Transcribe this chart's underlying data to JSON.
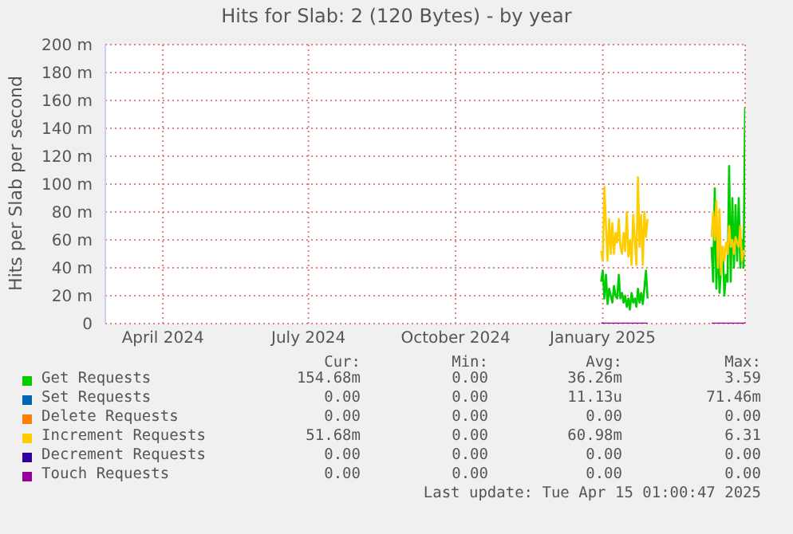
{
  "chart_data": {
    "type": "line",
    "title": "Hits for Slab: 2 (120 Bytes) - by year",
    "ylabel": "Hits per Slab per second",
    "x": [
      "2025-01-15",
      "2025-01-16",
      "2025-01-17",
      "2025-01-18",
      "2025-01-19",
      "2025-01-20",
      "2025-01-21",
      "2025-01-22",
      "2025-01-23",
      "2025-01-24",
      "2025-01-25",
      "2025-01-26",
      "2025-01-27",
      "2025-01-28",
      "2025-01-29",
      "2025-01-30",
      "2025-01-31",
      "2025-02-01",
      "2025-02-02",
      "2025-02-03",
      "2025-02-04",
      "2025-02-05",
      "2025-02-06",
      "2025-02-07",
      "2025-02-08",
      "2025-02-09",
      "2025-02-10",
      "2025-02-11",
      "2025-02-12",
      "2025-02-13",
      "2025-02-14",
      "2025-03-25",
      "2025-03-26",
      "2025-03-27",
      "2025-03-28",
      "2025-03-29",
      "2025-03-30",
      "2025-03-31",
      "2025-04-01",
      "2025-04-02",
      "2025-04-03",
      "2025-04-04",
      "2025-04-05",
      "2025-04-06",
      "2025-04-07",
      "2025-04-08",
      "2025-04-09",
      "2025-04-10",
      "2025-04-11",
      "2025-04-12",
      "2025-04-13",
      "2025-04-14",
      "2025-04-15"
    ],
    "series": [
      {
        "name": "Get Requests",
        "color": "#00cc00",
        "values": [
          30,
          38,
          18,
          35,
          14,
          25,
          20,
          15,
          27,
          20,
          18,
          35,
          18,
          22,
          15,
          20,
          12,
          18,
          10,
          22,
          15,
          18,
          12,
          25,
          15,
          22,
          14,
          25,
          38,
          18,
          null,
          55,
          30,
          97,
          25,
          60,
          22,
          40,
          55,
          20,
          35,
          30,
          113,
          30,
          90,
          40,
          85,
          45,
          90,
          40,
          60,
          40,
          155
        ]
      },
      {
        "name": "Set Requests",
        "color": "#0066b3",
        "values": [
          null,
          null,
          null,
          null,
          null,
          null,
          null,
          null,
          null,
          null,
          null,
          null,
          null,
          null,
          null,
          null,
          null,
          null,
          null,
          null,
          null,
          null,
          null,
          null,
          null,
          null,
          null,
          null,
          null,
          null,
          null,
          null,
          null,
          null,
          null,
          null,
          null,
          null,
          null,
          null,
          null,
          null,
          null,
          null,
          null,
          null,
          null,
          null,
          null,
          null,
          null,
          null,
          null
        ]
      },
      {
        "name": "Delete Requests",
        "color": "#ff8000",
        "values": [
          null,
          null,
          null,
          null,
          null,
          null,
          null,
          null,
          null,
          null,
          null,
          null,
          null,
          null,
          null,
          null,
          null,
          null,
          null,
          null,
          null,
          null,
          null,
          null,
          null,
          null,
          null,
          null,
          null,
          null,
          null,
          null,
          null,
          null,
          null,
          null,
          null,
          null,
          null,
          null,
          null,
          null,
          null,
          null,
          null,
          null,
          null,
          null,
          null,
          null,
          null,
          null,
          null
        ]
      },
      {
        "name": "Increment Requests",
        "color": "#ffcc00",
        "values": [
          52,
          45,
          98,
          70,
          45,
          75,
          50,
          72,
          50,
          65,
          58,
          75,
          55,
          50,
          65,
          52,
          80,
          48,
          60,
          42,
          78,
          60,
          42,
          105,
          55,
          78,
          42,
          80,
          62,
          75,
          null,
          62,
          80,
          60,
          88,
          40,
          82,
          35,
          55,
          45,
          58,
          50,
          70,
          55,
          60,
          50,
          62,
          58,
          55,
          70,
          45,
          52,
          52
        ]
      },
      {
        "name": "Decrement Requests",
        "color": "#330099",
        "values": [
          null,
          null,
          null,
          null,
          null,
          null,
          null,
          null,
          null,
          null,
          null,
          null,
          null,
          null,
          null,
          null,
          null,
          null,
          null,
          null,
          null,
          null,
          null,
          null,
          null,
          null,
          null,
          null,
          null,
          null,
          null,
          null,
          null,
          null,
          null,
          null,
          null,
          null,
          null,
          null,
          null,
          null,
          null,
          null,
          null,
          null,
          null,
          null,
          null,
          null,
          null,
          null,
          null
        ]
      },
      {
        "name": "Touch Requests",
        "color": "#990099",
        "values": [
          0,
          0,
          0,
          0,
          0,
          0,
          0,
          0,
          0,
          0,
          0,
          0,
          0,
          0,
          0,
          0,
          0,
          0,
          0,
          0,
          0,
          0,
          0,
          0,
          0,
          0,
          0,
          0,
          0,
          0,
          null,
          0,
          0,
          0,
          0,
          0,
          0,
          0,
          0,
          0,
          0,
          0,
          0,
          0,
          0,
          0,
          0,
          0,
          0,
          0,
          0,
          0,
          0
        ]
      }
    ],
    "xlim": [
      "2024-03-11",
      "2025-04-15"
    ],
    "xticks": [
      {
        "value": "2024-04-16",
        "label": "April 2024"
      },
      {
        "value": "2024-07-16",
        "label": "July 2024"
      },
      {
        "value": "2024-10-16",
        "label": "October 2024"
      },
      {
        "value": "2025-01-16",
        "label": "January 2025"
      }
    ],
    "ylim": [
      0,
      200
    ],
    "yticks": [
      0,
      {
        "value": 20,
        "label": "20 m"
      },
      {
        "value": 40,
        "label": "40 m"
      },
      {
        "value": 60,
        "label": "60 m"
      },
      {
        "value": 80,
        "label": "80 m"
      },
      {
        "value": 100,
        "label": "100 m"
      },
      {
        "value": 120,
        "label": "120 m"
      },
      {
        "value": 140,
        "label": "140 m"
      },
      {
        "value": 160,
        "label": "160 m"
      },
      {
        "value": 180,
        "label": "180 m"
      },
      {
        "value": 200,
        "label": "200 m"
      }
    ],
    "grid": true,
    "legend": "bottom",
    "marker": "none",
    "line_style": "solid",
    "annotations": [
      "Cur:",
      "Min:",
      "Avg:",
      "Max:",
      "154.68m",
      "0.00",
      "36.26m",
      "3.59",
      "0.00",
      "0.00",
      "11.13u",
      "71.46m",
      "0.00",
      "0.00",
      "0.00",
      "0.00",
      "51.68m",
      "0.00",
      "60.98m",
      "6.31",
      "0.00",
      "0.00",
      "0.00",
      "0.00",
      "0.00",
      "0.00",
      "0.00",
      "0.00",
      "Last update: Tue Apr 15 01:00:47 2025"
    ]
  }
}
